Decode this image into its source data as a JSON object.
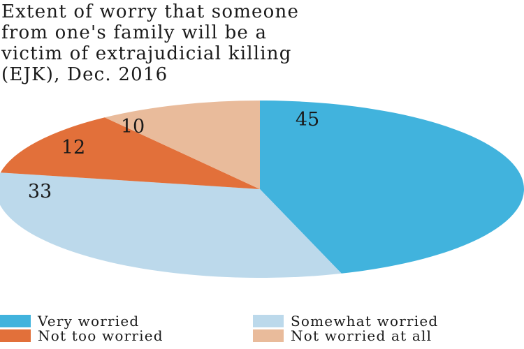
{
  "chart_data": {
    "type": "pie",
    "title": "Extent of worry that someone\nfrom one's family will be a\nvictim of extrajudicial killing\n(EJK), Dec. 2016",
    "slices": [
      {
        "label": "Very worried",
        "value": 45,
        "color": "#41b3dd"
      },
      {
        "label": "Somewhat worried",
        "value": 33,
        "color": "#bcd9eb"
      },
      {
        "label": "Not too worried",
        "value": 12,
        "color": "#e2703a"
      },
      {
        "label": "Not worried at all",
        "value": 10,
        "color": "#e9bb9b"
      }
    ],
    "legend_position": "bottom"
  }
}
